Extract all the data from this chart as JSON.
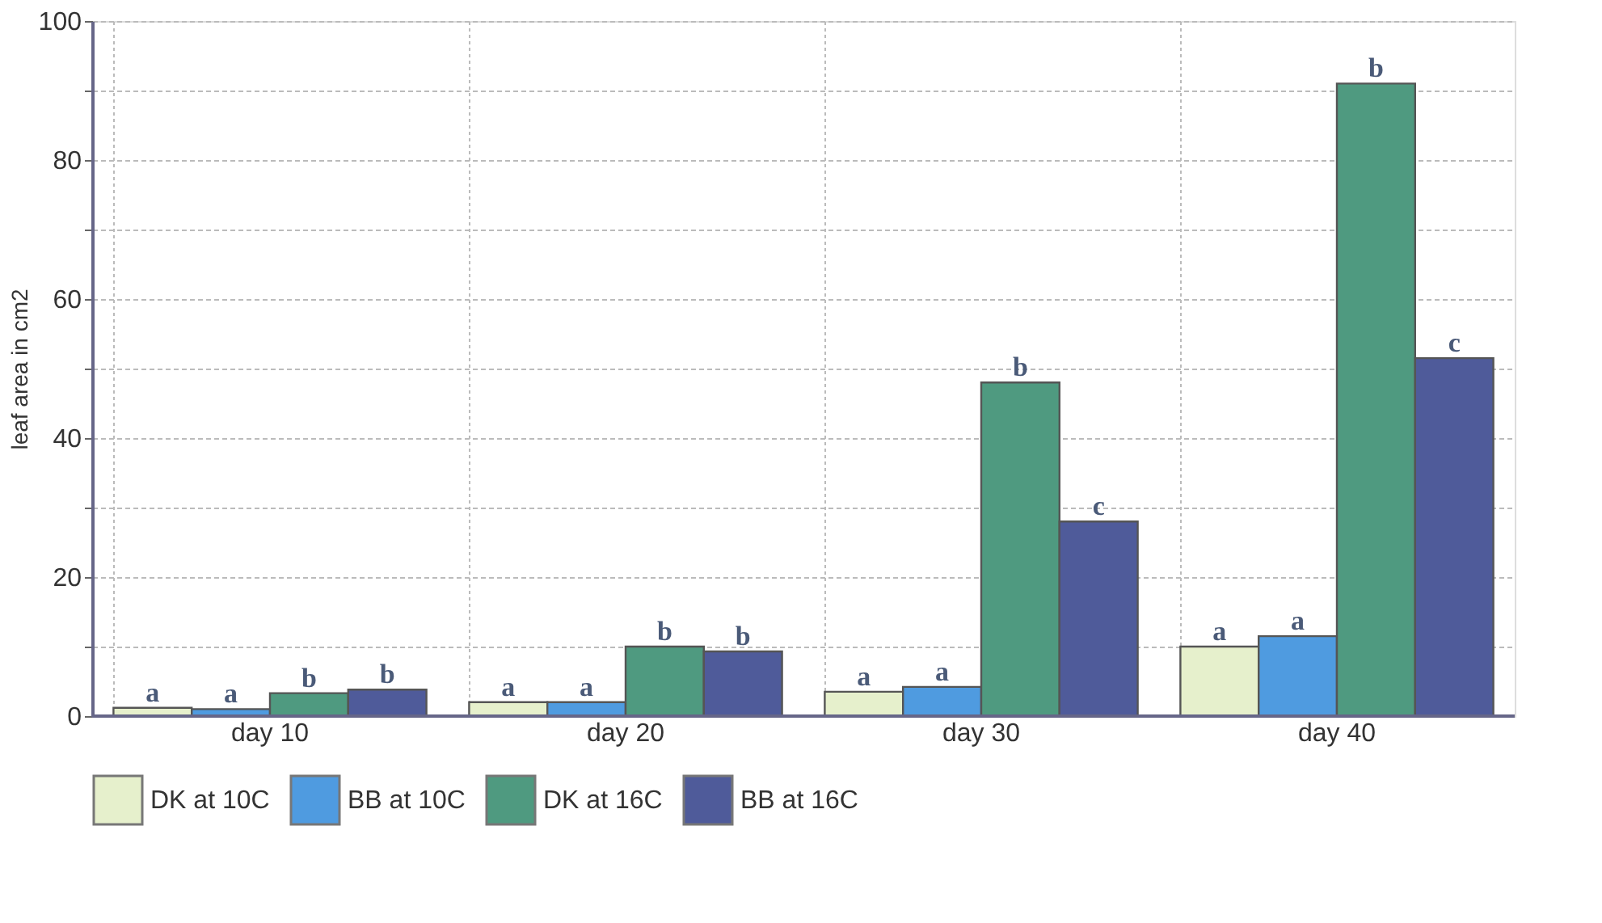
{
  "chart_data": {
    "type": "bar",
    "ylabel": "leaf area in cm2",
    "categories": [
      "day 10",
      "day 20",
      "day 30",
      "day 40"
    ],
    "series": [
      {
        "name": "DK at 10C",
        "color": "#e6f0cc",
        "values": [
          1.2,
          2,
          3.5,
          10
        ]
      },
      {
        "name": "BB at 10C",
        "color": "#4f9be0",
        "values": [
          1,
          2,
          4.2,
          11.5
        ]
      },
      {
        "name": "DK at 16C",
        "color": "#4f9a80",
        "values": [
          3.3,
          10,
          48,
          91
        ]
      },
      {
        "name": "BB at 16C",
        "color": "#4f5b9a",
        "values": [
          3.8,
          9.3,
          28,
          51.5
        ]
      }
    ],
    "ylim": [
      0,
      100
    ],
    "yticks": [
      0,
      {
        "value": 10,
        "label": null
      },
      20,
      {
        "value": 30,
        "label": null
      },
      40,
      {
        "value": 50,
        "label": null
      },
      60,
      {
        "value": 70,
        "label": null
      },
      80,
      {
        "value": 90,
        "label": null
      },
      100
    ],
    "grid": true,
    "legend": "bottom",
    "annotations": [
      "a",
      "a",
      "b",
      "b",
      "a",
      "a",
      "b",
      "b",
      "a",
      "a",
      "b",
      "c",
      "a",
      "a",
      "b",
      "c"
    ]
  }
}
